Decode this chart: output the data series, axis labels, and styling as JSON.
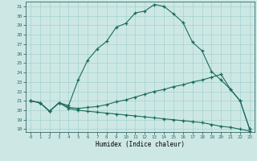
{
  "xlabel": "Humidex (Indice chaleur)",
  "bg_color": "#cde8e4",
  "line_color": "#1a6b5a",
  "xlim": [
    -0.5,
    23.5
  ],
  "ylim": [
    17.7,
    31.5
  ],
  "yticks": [
    18,
    19,
    20,
    21,
    22,
    23,
    24,
    25,
    26,
    27,
    28,
    29,
    30,
    31
  ],
  "xticks": [
    0,
    1,
    2,
    3,
    4,
    5,
    6,
    7,
    8,
    9,
    10,
    11,
    12,
    13,
    14,
    15,
    16,
    17,
    18,
    19,
    20,
    21,
    22,
    23
  ],
  "line1_x": [
    0,
    1,
    2,
    3,
    4,
    5,
    6,
    7,
    8,
    9,
    10,
    11,
    12,
    13,
    14,
    15,
    16,
    17,
    18,
    19,
    20,
    21,
    22,
    23
  ],
  "line1_y": [
    21.0,
    20.8,
    19.9,
    20.8,
    20.5,
    23.2,
    25.3,
    26.5,
    27.3,
    28.8,
    29.2,
    30.3,
    30.5,
    31.2,
    31.0,
    30.2,
    29.3,
    27.2,
    26.3,
    24.1,
    23.2,
    22.2,
    21.0,
    18.0
  ],
  "line2_x": [
    0,
    1,
    2,
    3,
    4,
    5,
    6,
    7,
    8,
    9,
    10,
    11,
    12,
    13,
    14,
    15,
    16,
    17,
    18,
    19,
    20,
    21,
    22,
    23
  ],
  "line2_y": [
    21.0,
    20.8,
    19.9,
    20.8,
    20.3,
    20.2,
    20.3,
    20.4,
    20.6,
    20.9,
    21.1,
    21.4,
    21.7,
    22.0,
    22.2,
    22.5,
    22.7,
    23.0,
    23.2,
    23.5,
    23.8,
    22.2,
    21.0,
    18.0
  ],
  "line3_x": [
    0,
    1,
    2,
    3,
    4,
    5,
    6,
    7,
    8,
    9,
    10,
    11,
    12,
    13,
    14,
    15,
    16,
    17,
    18,
    19,
    20,
    21,
    22,
    23
  ],
  "line3_y": [
    21.0,
    20.8,
    19.9,
    20.8,
    20.2,
    20.0,
    19.9,
    19.8,
    19.7,
    19.6,
    19.5,
    19.4,
    19.3,
    19.2,
    19.1,
    19.0,
    18.9,
    18.8,
    18.7,
    18.5,
    18.3,
    18.2,
    18.0,
    17.8
  ]
}
